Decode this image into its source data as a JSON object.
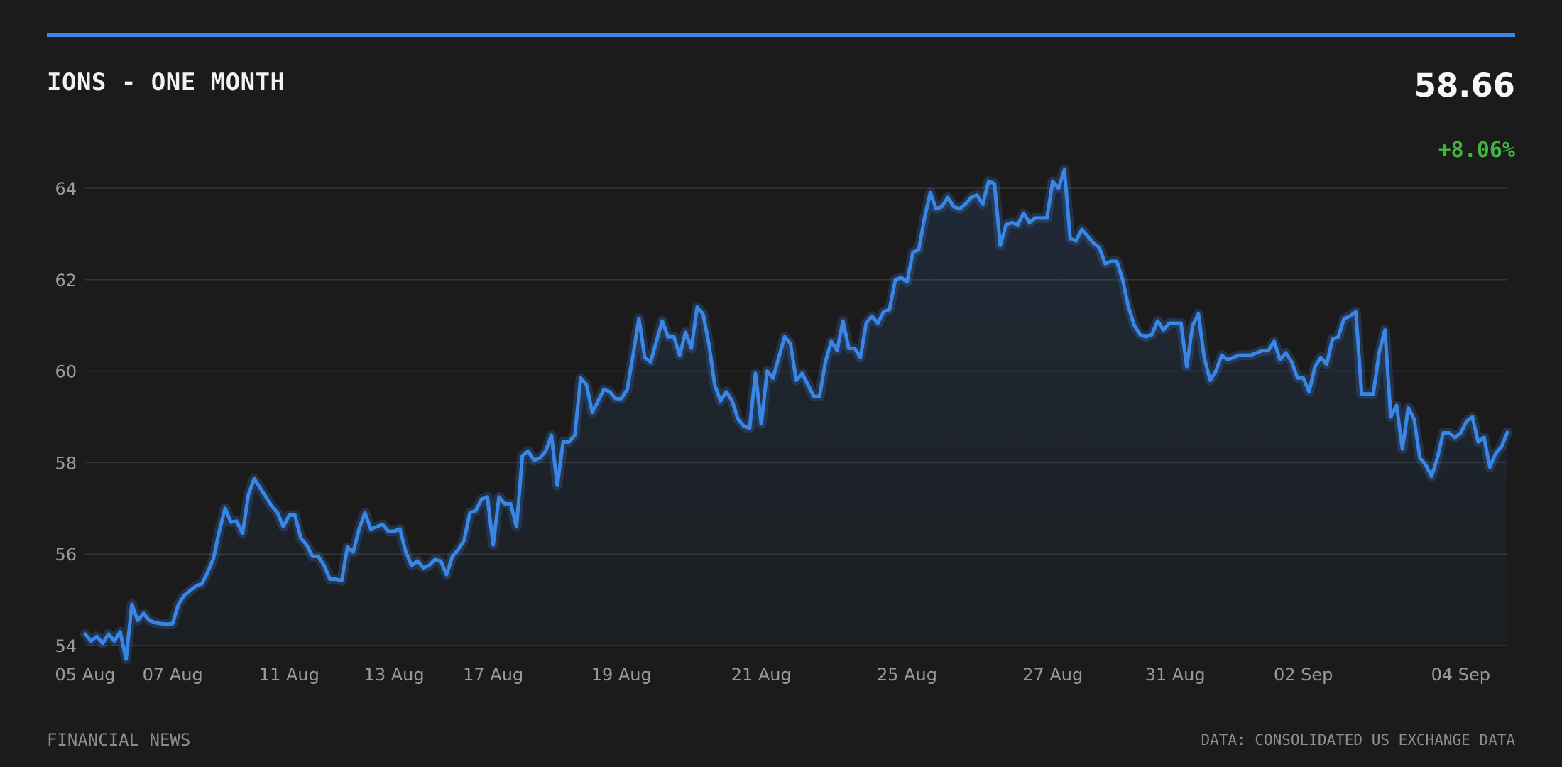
{
  "header": {
    "title": "IONS - ONE MONTH",
    "price": "58.66",
    "change": "+8.06%"
  },
  "footer": {
    "source": "FINANCIAL NEWS",
    "data_note": "DATA: CONSOLIDATED US EXCHANGE DATA"
  },
  "colors": {
    "background": "#1b1b1b",
    "accent_line": "#3a86e6",
    "positive_change": "#3bb83d",
    "grid": "#353535",
    "axis_text": "#9a9a9a"
  },
  "chart_data": {
    "type": "line",
    "title": "IONS - ONE MONTH",
    "xlabel": "",
    "ylabel": "",
    "ylim": [
      54,
      64.8
    ],
    "y_ticks": [
      54,
      56,
      58,
      60,
      62,
      64
    ],
    "y_tick_labels": [
      "54",
      "56",
      "58",
      "60",
      "62",
      "64"
    ],
    "x_tick_labels": [
      {
        "label": "05 Aug",
        "index": 0
      },
      {
        "label": "07 Aug",
        "index": 15
      },
      {
        "label": "11 Aug",
        "index": 35
      },
      {
        "label": "13 Aug",
        "index": 53
      },
      {
        "label": "17 Aug",
        "index": 70
      },
      {
        "label": "19 Aug",
        "index": 92
      },
      {
        "label": "21 Aug",
        "index": 116
      },
      {
        "label": "25 Aug",
        "index": 141
      },
      {
        "label": "27 Aug",
        "index": 166
      },
      {
        "label": "31 Aug",
        "index": 187
      },
      {
        "label": "02 Sep",
        "index": 209
      },
      {
        "label": "04 Sep",
        "index": 236
      }
    ],
    "grid": true,
    "area_fill": true,
    "series": [
      {
        "values": [
          54.25,
          54.1,
          54.2,
          54.05,
          54.25,
          54.1,
          54.3,
          53.7,
          54.9,
          54.55,
          54.7,
          54.55,
          54.5,
          54.48,
          54.47,
          54.48,
          54.9,
          55.1,
          55.2,
          55.3,
          55.35,
          55.6,
          55.9,
          56.5,
          57.0,
          56.7,
          56.72,
          56.45,
          57.3,
          57.65,
          57.45,
          57.25,
          57.05,
          56.9,
          56.6,
          56.85,
          56.85,
          56.35,
          56.2,
          55.95,
          55.95,
          55.75,
          55.45,
          55.45,
          55.42,
          56.15,
          56.05,
          56.55,
          56.9,
          56.55,
          56.6,
          56.65,
          56.5,
          56.5,
          56.55,
          56.05,
          55.75,
          55.85,
          55.7,
          55.75,
          55.88,
          55.85,
          55.55,
          55.95,
          56.1,
          56.3,
          56.9,
          56.95,
          57.2,
          57.25,
          56.2,
          57.25,
          57.1,
          57.1,
          56.6,
          58.15,
          58.25,
          58.05,
          58.1,
          58.25,
          58.6,
          57.5,
          58.45,
          58.45,
          58.6,
          59.85,
          59.7,
          59.1,
          59.35,
          59.6,
          59.55,
          59.4,
          59.4,
          59.6,
          60.35,
          61.15,
          60.3,
          60.2,
          60.65,
          61.1,
          60.75,
          60.75,
          60.35,
          60.85,
          60.5,
          61.4,
          61.25,
          60.6,
          59.7,
          59.35,
          59.55,
          59.35,
          58.95,
          58.8,
          58.75,
          59.95,
          58.85,
          60.0,
          59.85,
          60.3,
          60.75,
          60.6,
          59.8,
          59.95,
          59.7,
          59.45,
          59.45,
          60.2,
          60.65,
          60.45,
          61.1,
          60.5,
          60.5,
          60.3,
          61.05,
          61.2,
          61.05,
          61.3,
          61.35,
          62.0,
          62.05,
          61.95,
          62.6,
          62.65,
          63.35,
          63.9,
          63.55,
          63.6,
          63.8,
          63.6,
          63.55,
          63.65,
          63.8,
          63.85,
          63.65,
          64.15,
          64.1,
          62.75,
          63.2,
          63.25,
          63.2,
          63.45,
          63.25,
          63.35,
          63.35,
          63.35,
          64.15,
          64.0,
          64.4,
          62.9,
          62.85,
          63.1,
          62.95,
          62.8,
          62.7,
          62.35,
          62.4,
          62.4,
          62.0,
          61.4,
          61.0,
          60.8,
          60.75,
          60.8,
          61.1,
          60.9,
          61.05,
          61.05,
          61.05,
          60.1,
          61.0,
          61.25,
          60.3,
          59.8,
          60.0,
          60.35,
          60.25,
          60.3,
          60.35,
          60.35,
          60.35,
          60.4,
          60.45,
          60.45,
          60.65,
          60.25,
          60.4,
          60.2,
          59.85,
          59.85,
          59.55,
          60.1,
          60.3,
          60.15,
          60.7,
          60.75,
          61.15,
          61.2,
          61.3,
          59.5,
          59.5,
          59.5,
          60.4,
          60.9,
          59.0,
          59.25,
          58.3,
          59.2,
          58.95,
          58.1,
          57.95,
          57.7,
          58.1,
          58.65,
          58.65,
          58.55,
          58.65,
          58.9,
          59.0,
          58.45,
          58.55,
          57.9,
          58.2,
          58.35,
          58.66
        ]
      }
    ]
  }
}
